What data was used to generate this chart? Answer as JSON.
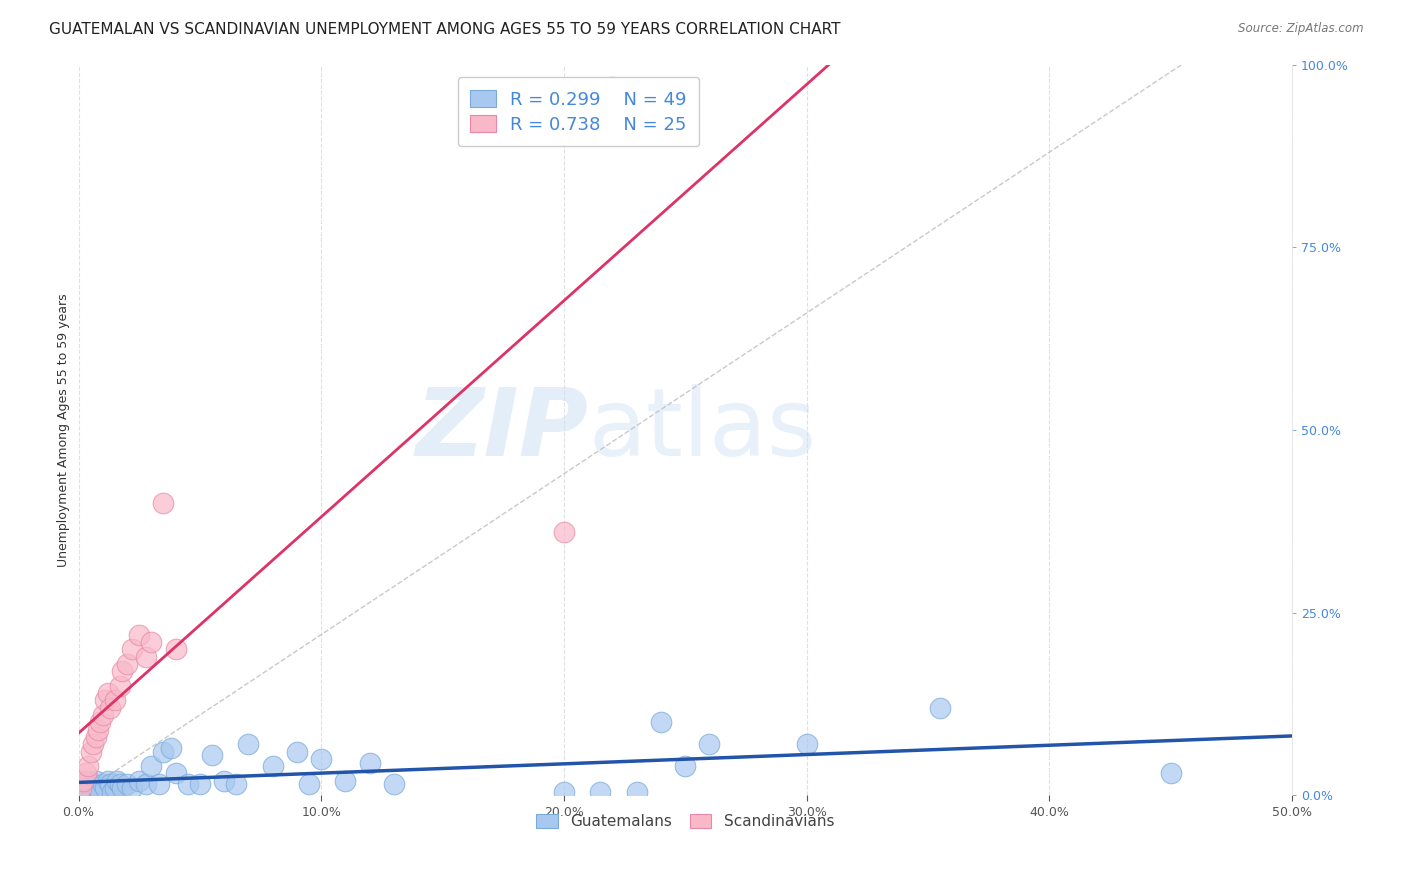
{
  "title": "GUATEMALAN VS SCANDINAVIAN UNEMPLOYMENT AMONG AGES 55 TO 59 YEARS CORRELATION CHART",
  "source": "Source: ZipAtlas.com",
  "ylabel": "Unemployment Among Ages 55 to 59 years",
  "xlim": [
    0.0,
    0.5
  ],
  "ylim": [
    0.0,
    1.0
  ],
  "x_ticks": [
    0.0,
    0.1,
    0.2,
    0.3,
    0.4,
    0.5
  ],
  "x_tick_labels": [
    "0.0%",
    "10.0%",
    "20.0%",
    "30.0%",
    "40.0%",
    "50.0%"
  ],
  "y_ticks_right": [
    0.0,
    0.25,
    0.5,
    0.75,
    1.0
  ],
  "y_tick_labels_right": [
    "0.0%",
    "25.0%",
    "50.0%",
    "75.0%",
    "100.0%"
  ],
  "background_color": "#ffffff",
  "legend_labels": [
    "Guatemalans",
    "Scandinavians"
  ],
  "R_guatemalan": 0.299,
  "N_guatemalan": 49,
  "R_scandinavian": 0.738,
  "N_scandinavian": 25,
  "guatemalan_color": "#a8c8f0",
  "guatemalan_edge_color": "#7aaad8",
  "scandinavian_color": "#f8b8c8",
  "scandinavian_edge_color": "#e888a8",
  "guatemalan_line_color": "#2255aa",
  "scandinavian_line_color": "#dd3366",
  "grid_color": "#dddddd",
  "title_fontsize": 11,
  "axis_fontsize": 9,
  "tick_fontsize": 9,
  "right_tick_color": "#4488dd",
  "guatemalan_scatter_x": [
    0.001,
    0.002,
    0.003,
    0.004,
    0.005,
    0.006,
    0.007,
    0.008,
    0.009,
    0.01,
    0.011,
    0.012,
    0.013,
    0.014,
    0.015,
    0.016,
    0.017,
    0.018,
    0.02,
    0.022,
    0.025,
    0.028,
    0.03,
    0.033,
    0.035,
    0.038,
    0.04,
    0.045,
    0.05,
    0.055,
    0.06,
    0.065,
    0.07,
    0.08,
    0.09,
    0.095,
    0.1,
    0.11,
    0.12,
    0.13,
    0.2,
    0.215,
    0.23,
    0.24,
    0.25,
    0.26,
    0.3,
    0.355,
    0.45
  ],
  "guatemalan_scatter_y": [
    0.01,
    0.015,
    0.005,
    0.02,
    0.01,
    0.015,
    0.02,
    0.01,
    0.005,
    0.015,
    0.01,
    0.02,
    0.015,
    0.005,
    0.01,
    0.02,
    0.015,
    0.01,
    0.015,
    0.01,
    0.02,
    0.015,
    0.04,
    0.015,
    0.06,
    0.065,
    0.03,
    0.015,
    0.015,
    0.055,
    0.02,
    0.015,
    0.07,
    0.04,
    0.06,
    0.015,
    0.05,
    0.02,
    0.045,
    0.015,
    0.005,
    0.005,
    0.005,
    0.1,
    0.04,
    0.07,
    0.07,
    0.12,
    0.03
  ],
  "scandinavian_scatter_x": [
    0.001,
    0.002,
    0.003,
    0.004,
    0.005,
    0.006,
    0.007,
    0.008,
    0.009,
    0.01,
    0.011,
    0.012,
    0.013,
    0.015,
    0.017,
    0.018,
    0.02,
    0.022,
    0.025,
    0.028,
    0.03,
    0.035,
    0.04,
    0.2,
    0.22
  ],
  "scandinavian_scatter_y": [
    0.01,
    0.02,
    0.03,
    0.04,
    0.06,
    0.07,
    0.08,
    0.09,
    0.1,
    0.11,
    0.13,
    0.14,
    0.12,
    0.13,
    0.15,
    0.17,
    0.18,
    0.2,
    0.22,
    0.19,
    0.21,
    0.4,
    0.2,
    0.36,
    0.97
  ],
  "dashed_line_x": [
    0.0,
    0.5
  ],
  "dashed_line_y": [
    0.0,
    1.1
  ]
}
